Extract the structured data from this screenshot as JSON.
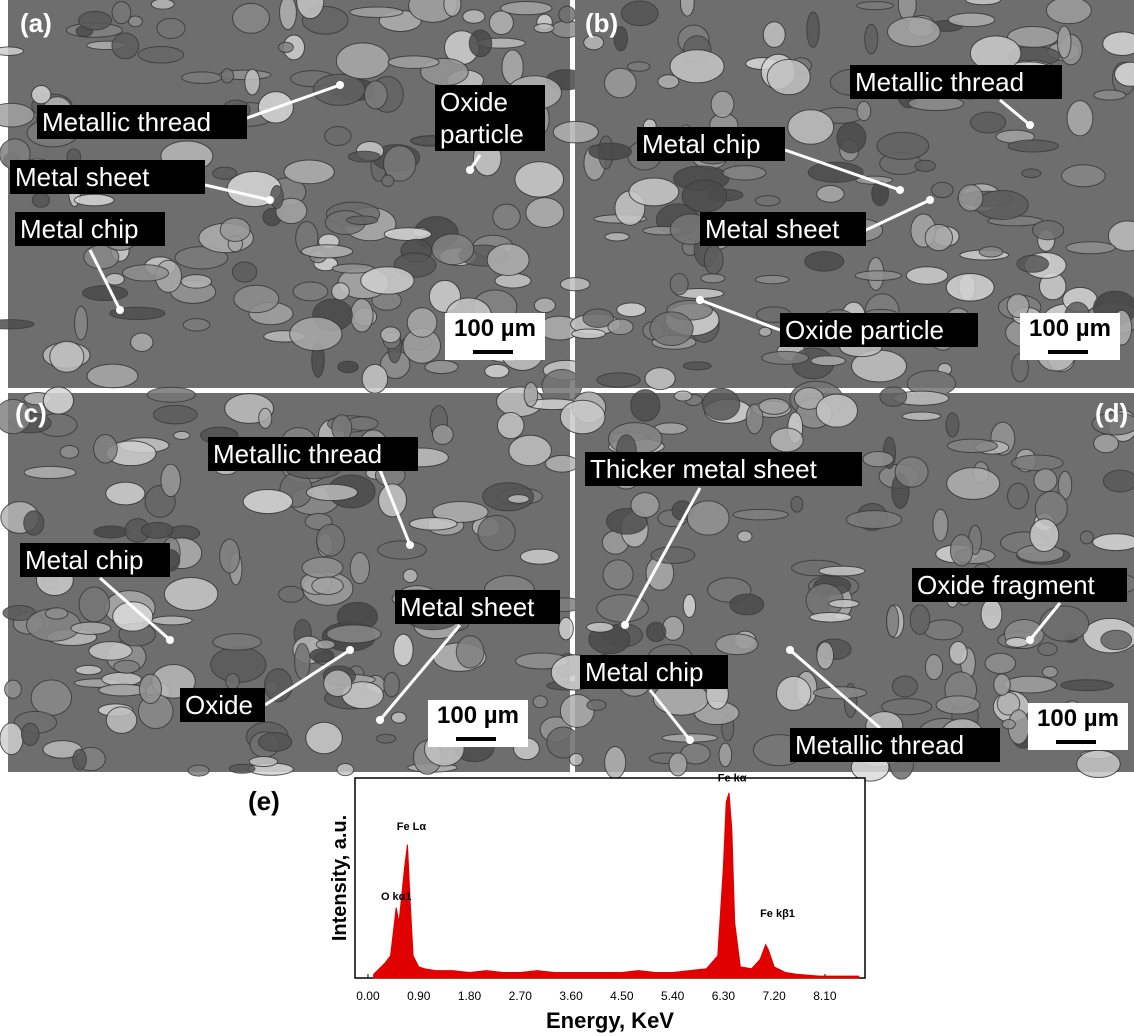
{
  "panels": [
    {
      "label": "(a)",
      "annotations": [
        "Metallic thread",
        "Oxide particle",
        "Metal sheet",
        "Metal chip"
      ],
      "scale_bar": "100 µm"
    },
    {
      "label": "(b)",
      "annotations": [
        "Metallic thread",
        "Metal chip",
        "Metal sheet",
        "Oxide particle"
      ],
      "scale_bar": "100 µm"
    },
    {
      "label": "(c)",
      "annotations": [
        "Metallic thread",
        "Metal chip",
        "Metal sheet",
        "Oxide"
      ],
      "scale_bar": "100 µm"
    },
    {
      "label": "(d)",
      "annotations": [
        "Thicker metal sheet",
        "Oxide fragment",
        "Metal chip",
        "Metallic thread"
      ],
      "scale_bar": "100 µm"
    }
  ],
  "chart_data": {
    "type": "area",
    "panel_label": "(e)",
    "x_label": "Energy, KeV",
    "y_label": "Intensity, a.u.",
    "color": "#e00000",
    "x": [
      0.1,
      0.2,
      0.3,
      0.4,
      0.45,
      0.5,
      0.55,
      0.6,
      0.65,
      0.7,
      0.75,
      0.8,
      0.9,
      1.0,
      1.2,
      1.5,
      1.8,
      2.1,
      2.4,
      2.7,
      3.0,
      3.3,
      3.6,
      3.9,
      4.2,
      4.5,
      4.8,
      5.1,
      5.4,
      5.7,
      6.0,
      6.2,
      6.3,
      6.35,
      6.4,
      6.45,
      6.5,
      6.6,
      6.8,
      6.95,
      7.05,
      7.1,
      7.2,
      7.4,
      7.6,
      8.0,
      8.4,
      8.7
    ],
    "values": [
      2,
      5,
      8,
      12,
      25,
      38,
      30,
      45,
      60,
      72,
      40,
      12,
      6,
      5,
      4,
      4,
      3,
      4,
      3,
      3,
      4,
      3,
      3,
      3,
      3,
      3,
      4,
      3,
      3,
      4,
      5,
      12,
      60,
      95,
      100,
      80,
      30,
      6,
      5,
      10,
      18,
      15,
      6,
      3,
      2,
      1,
      1,
      1
    ],
    "annotations": [
      {
        "text": "O kα1",
        "x": 0.23,
        "y": 42
      },
      {
        "text": "Fe Lα",
        "x": 0.51,
        "y": 80
      },
      {
        "text": "Fe kα",
        "x": 6.2,
        "y": 106
      },
      {
        "text": "Fe kβ1",
        "x": 6.95,
        "y": 33
      }
    ],
    "xlim": [
      -0.23,
      8.81
    ],
    "ylim": [
      0,
      108
    ],
    "xticks": [
      {
        "value": 0,
        "label": "0.00"
      },
      {
        "value": 0.9,
        "label": "0.90"
      },
      {
        "value": 1.8,
        "label": "1.80"
      },
      {
        "value": 2.7,
        "label": "2.70"
      },
      {
        "value": 3.6,
        "label": "3.60"
      },
      {
        "value": 4.5,
        "label": "4.50"
      },
      {
        "value": 5.4,
        "label": "5.40"
      },
      {
        "value": 6.3,
        "label": "6.30"
      },
      {
        "value": 7.2,
        "label": "7.20"
      },
      {
        "value": 8.1,
        "label": "8.10"
      }
    ]
  }
}
